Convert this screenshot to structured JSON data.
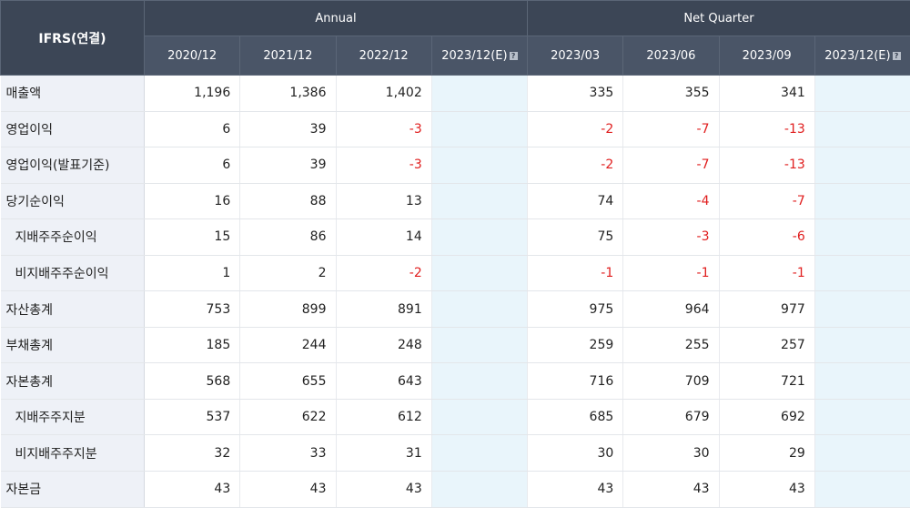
{
  "header": {
    "corner": "IFRS(연결)",
    "group_annual": "Annual",
    "group_quarter": "Net Quarter",
    "columns": [
      "2020/12",
      "2021/12",
      "2022/12",
      "2023/12(E)",
      "2023/03",
      "2023/06",
      "2023/09",
      "2023/12(E)"
    ]
  },
  "rows": [
    {
      "label": "매출액",
      "indent": false,
      "values": [
        "1,196",
        "1,386",
        "1,402",
        "",
        "335",
        "355",
        "341",
        ""
      ]
    },
    {
      "label": "영업이익",
      "indent": false,
      "values": [
        "6",
        "39",
        "-3",
        "",
        "-2",
        "-7",
        "-13",
        ""
      ]
    },
    {
      "label": "영업이익(발표기준)",
      "indent": false,
      "values": [
        "6",
        "39",
        "-3",
        "",
        "-2",
        "-7",
        "-13",
        ""
      ]
    },
    {
      "label": "당기순이익",
      "indent": false,
      "values": [
        "16",
        "88",
        "13",
        "",
        "74",
        "-4",
        "-7",
        ""
      ]
    },
    {
      "label": "지배주주순이익",
      "indent": true,
      "values": [
        "15",
        "86",
        "14",
        "",
        "75",
        "-3",
        "-6",
        ""
      ]
    },
    {
      "label": "비지배주주순이익",
      "indent": true,
      "values": [
        "1",
        "2",
        "-2",
        "",
        "-1",
        "-1",
        "-1",
        ""
      ]
    },
    {
      "label": "자산총계",
      "indent": false,
      "values": [
        "753",
        "899",
        "891",
        "",
        "975",
        "964",
        "977",
        ""
      ]
    },
    {
      "label": "부채총계",
      "indent": false,
      "values": [
        "185",
        "244",
        "248",
        "",
        "259",
        "255",
        "257",
        ""
      ]
    },
    {
      "label": "자본총계",
      "indent": false,
      "values": [
        "568",
        "655",
        "643",
        "",
        "716",
        "709",
        "721",
        ""
      ]
    },
    {
      "label": "지배주주지분",
      "indent": true,
      "values": [
        "537",
        "622",
        "612",
        "",
        "685",
        "679",
        "692",
        ""
      ]
    },
    {
      "label": "비지배주주지분",
      "indent": true,
      "values": [
        "32",
        "33",
        "31",
        "",
        "30",
        "30",
        "29",
        ""
      ]
    },
    {
      "label": "자본금",
      "indent": false,
      "values": [
        "43",
        "43",
        "43",
        "",
        "43",
        "43",
        "43",
        ""
      ]
    }
  ],
  "colors": {
    "header_bg": "#3c4656",
    "negative": "#e01e1e",
    "estimate_bg": "#e9f5fb",
    "label_bg": "#eef1f7"
  },
  "icons": {
    "estimate_info": "info-icon"
  }
}
